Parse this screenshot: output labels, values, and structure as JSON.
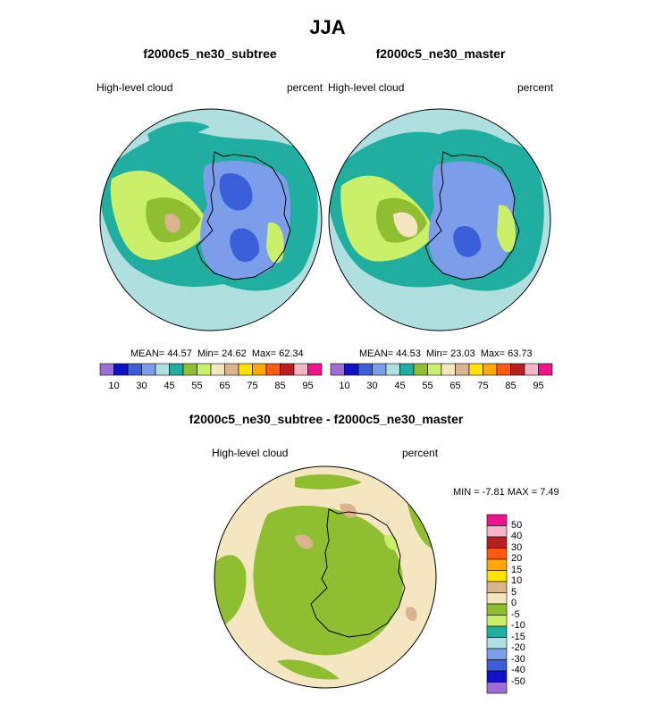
{
  "chart_data": {
    "type": "heatmap",
    "title": "JJA",
    "variable": "High-level cloud",
    "units": "percent",
    "panels": [
      {
        "title": "f2000c5_ne30_subtree",
        "left_label": "High-level cloud",
        "right_label": "percent",
        "stats": {
          "mean_label": "MEAN=",
          "mean": "44.57",
          "min_label": "Min=",
          "min": "24.62",
          "max_label": "Max=",
          "max": "62.34"
        }
      },
      {
        "title": "f2000c5_ne30_master",
        "left_label": "High-level cloud",
        "right_label": "percent",
        "stats": {
          "mean_label": "MEAN=",
          "mean": "44.53",
          "min_label": "Min=",
          "min": "23.03",
          "max_label": "Max=",
          "max": "63.73"
        }
      },
      {
        "title": "f2000c5_ne30_subtree - f2000c5_ne30_master",
        "left_label": "High-level cloud",
        "right_label": "percent",
        "stats": {
          "min_label": "MIN =",
          "min": "-7.81",
          "max_label": "MAX =",
          "max": "7.49"
        }
      }
    ],
    "colorbar_abs": {
      "levels": [
        10,
        30,
        45,
        55,
        65,
        75,
        85,
        95
      ],
      "colors": [
        "#9d6fd6",
        "#1010c8",
        "#3b5fd9",
        "#7c9eea",
        "#b0dfe0",
        "#20aea0",
        "#8fbf30",
        "#c9f068",
        "#f5e6c2",
        "#d9b48e",
        "#ffe200",
        "#ffa800",
        "#ff5a10",
        "#b82020",
        "#f7b5c8",
        "#f0148c"
      ]
    },
    "colorbar_diff": {
      "levels": [
        "50",
        "40",
        "30",
        "20",
        "15",
        "10",
        "5",
        "0",
        "-5",
        "-10",
        "-15",
        "-20",
        "-30",
        "-40",
        "-50"
      ],
      "colors": [
        "#f0148c",
        "#f7b5c8",
        "#b82020",
        "#ff5a10",
        "#ffa800",
        "#ffe200",
        "#d9b48e",
        "#f5e6c2",
        "#8fbf30",
        "#c9f068",
        "#20aea0",
        "#b0dfe0",
        "#7c9eea",
        "#3b5fd9",
        "#1010c8",
        "#9d6fd6"
      ]
    }
  }
}
